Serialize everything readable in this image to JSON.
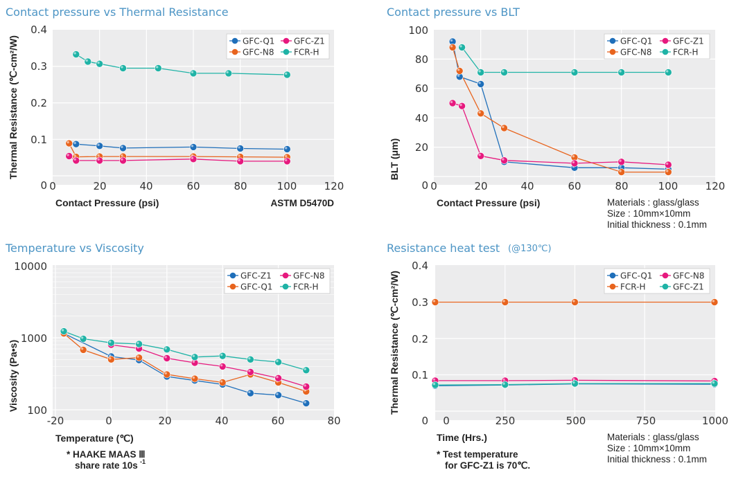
{
  "chart_data": [
    {
      "type": "line",
      "title": "Contact pressure vs Thermal Resistance",
      "xlabel": "Contact Pressure (psi)",
      "ylabel": "Thermal Resistance (℃-cm²/W)",
      "xlim": [
        0,
        120
      ],
      "ylim": [
        0,
        0.4
      ],
      "xticks": [
        "0",
        "20",
        "40",
        "60",
        "80",
        "100",
        "120"
      ],
      "yticks": [
        "0",
        "0.1",
        "0.2",
        "0.3",
        "0.4"
      ],
      "grid": true,
      "legend_position": "top-right",
      "note": "ASTM D5470D",
      "series": [
        {
          "name": "GFC-Q1",
          "color": "#1f6fba",
          "x": [
            10,
            20,
            30,
            60,
            80,
            100
          ],
          "y": [
            0.087,
            0.082,
            0.076,
            0.079,
            0.075,
            0.073
          ]
        },
        {
          "name": "GFC-N8",
          "color": "#e8641e",
          "x": [
            7,
            10,
            20,
            30,
            60,
            80,
            100
          ],
          "y": [
            0.089,
            0.052,
            0.053,
            0.053,
            0.053,
            0.052,
            0.051
          ]
        },
        {
          "name": "GFC-Z1",
          "color": "#e6197e",
          "x": [
            7,
            10,
            20,
            30,
            60,
            80,
            100
          ],
          "y": [
            0.054,
            0.042,
            0.042,
            0.042,
            0.046,
            0.04,
            0.04
          ]
        },
        {
          "name": "FCR-H",
          "color": "#1fb3a6",
          "x": [
            10,
            15,
            20,
            30,
            45,
            60,
            75,
            100
          ],
          "y": [
            0.333,
            0.313,
            0.307,
            0.295,
            0.295,
            0.281,
            0.281,
            0.277
          ]
        }
      ]
    },
    {
      "type": "line",
      "title": "Contact pressure vs BLT",
      "xlabel": "Contact Pressure (psi)",
      "ylabel": "BLT (μm)",
      "xlim": [
        0,
        120
      ],
      "ylim": [
        0,
        100
      ],
      "xticks": [
        "0",
        "20",
        "40",
        "60",
        "80",
        "100",
        "120"
      ],
      "yticks": [
        "0",
        "20",
        "40",
        "60",
        "80",
        "100"
      ],
      "grid": true,
      "legend_position": "top-right",
      "note_lines": [
        "Materials : glass/glass",
        "Size : 10mm×10mm",
        "Initial thickness : 0.1mm"
      ],
      "series": [
        {
          "name": "GFC-Q1",
          "color": "#1f6fba",
          "x": [
            8,
            11,
            20,
            30,
            60,
            80,
            100
          ],
          "y": [
            92,
            68,
            63,
            10,
            6,
            6,
            5
          ]
        },
        {
          "name": "GFC-N8",
          "color": "#e8641e",
          "x": [
            8,
            11,
            20,
            30,
            60,
            80,
            100
          ],
          "y": [
            88,
            72,
            43,
            33,
            13,
            3,
            3
          ]
        },
        {
          "name": "GFC-Z1",
          "color": "#e6197e",
          "x": [
            8,
            12,
            20,
            30,
            60,
            80,
            100
          ],
          "y": [
            50,
            48,
            14,
            11,
            9,
            10,
            8
          ]
        },
        {
          "name": "FCR-H",
          "color": "#1fb3a6",
          "x": [
            12,
            20,
            30,
            60,
            80,
            100
          ],
          "y": [
            88,
            71,
            71,
            71,
            71,
            71
          ]
        }
      ]
    },
    {
      "type": "line",
      "title": "Temperature vs Viscosity",
      "xlabel": "Temperature (℃)",
      "ylabel": "Viscosity (Pa•s)",
      "xlim": [
        -20,
        80
      ],
      "ylim": [
        100,
        10000
      ],
      "yscale": "log",
      "xticks": [
        "-20",
        "0",
        "20",
        "40",
        "60",
        "80"
      ],
      "yticks": [
        "100",
        "1000",
        "10000"
      ],
      "grid": true,
      "legend_position": "top-right",
      "note_lines": [
        "* HAAKE MAAS Ⅲ",
        "share rate 10s",
        "-1"
      ],
      "series": [
        {
          "name": "GFC-Z1",
          "color": "#1f6fba",
          "x": [
            -17,
            0,
            10,
            20,
            30,
            40,
            50,
            60,
            70
          ],
          "y": [
            1150,
            550,
            490,
            290,
            255,
            225,
            170,
            160,
            123
          ]
        },
        {
          "name": "GFC-Q1",
          "color": "#e8641e",
          "x": [
            -17,
            -10,
            0,
            10,
            20,
            30,
            40,
            50,
            60,
            70
          ],
          "y": [
            1150,
            680,
            500,
            530,
            310,
            270,
            240,
            310,
            240,
            180
          ]
        },
        {
          "name": "GFC-N8",
          "color": "#e6197e",
          "x": [
            0,
            10,
            20,
            30,
            40,
            50,
            60,
            70
          ],
          "y": [
            800,
            710,
            520,
            450,
            400,
            335,
            275,
            210
          ]
        },
        {
          "name": "FCR-H",
          "color": "#1fb3a6",
          "x": [
            -17,
            -10,
            0,
            10,
            20,
            30,
            40,
            50,
            60,
            70
          ],
          "y": [
            1230,
            970,
            850,
            820,
            690,
            540,
            560,
            500,
            460,
            355
          ]
        }
      ]
    },
    {
      "type": "line",
      "title": "Resistance heat test",
      "subtitle": "(@130℃)",
      "xlabel": "Time (Hrs.)",
      "ylabel": "Thermal Resistance (℃-cm²/W)",
      "xlim": [
        0,
        1000
      ],
      "ylim": [
        0,
        0.4
      ],
      "xticks": [
        "0",
        "250",
        "500",
        "750",
        "1000"
      ],
      "yticks": [
        "0",
        "0.1",
        "0.2",
        "0.3",
        "0.4"
      ],
      "grid": true,
      "legend_position": "top-right",
      "note_left_lines": [
        "* Test temperature",
        "for GFC-Z1 is 70℃."
      ],
      "note_lines": [
        "Materials : glass/glass",
        "Size : 10mm×10mm",
        "Initial thickness : 0.1mm"
      ],
      "series": [
        {
          "name": "GFC-Q1",
          "color": "#1f6fba",
          "x": [
            0,
            250,
            500,
            1000
          ],
          "y": [
            0.07,
            0.072,
            0.075,
            0.074
          ]
        },
        {
          "name": "FCR-H",
          "color": "#e8641e",
          "x": [
            0,
            250,
            500,
            1000
          ],
          "y": [
            0.3,
            0.3,
            0.3,
            0.3
          ]
        },
        {
          "name": "GFC-N8",
          "color": "#e6197e",
          "x": [
            0,
            250,
            500,
            1000
          ],
          "y": [
            0.084,
            0.084,
            0.085,
            0.083
          ]
        },
        {
          "name": "GFC-Z1",
          "color": "#1fb3a6",
          "x": [
            0,
            250,
            500,
            1000
          ],
          "y": [
            0.072,
            0.073,
            0.076,
            0.076
          ]
        }
      ]
    }
  ]
}
